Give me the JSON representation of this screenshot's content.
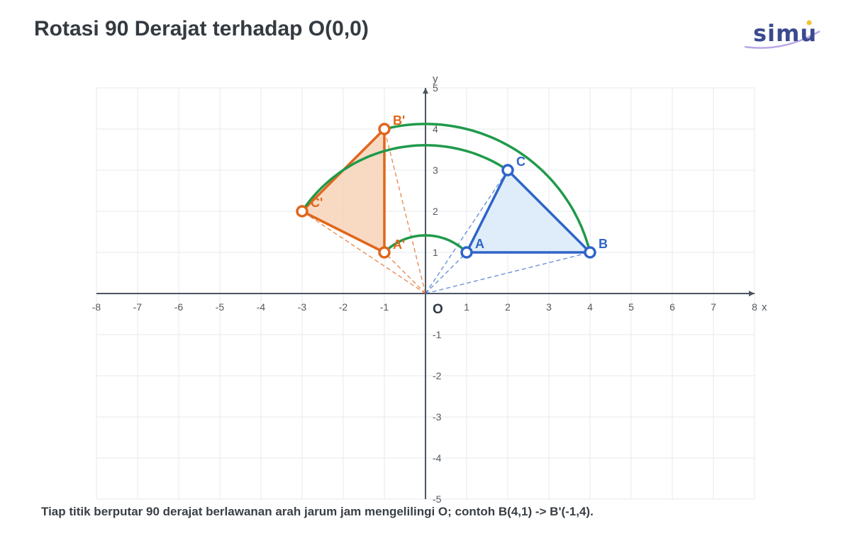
{
  "title": "Rotasi 90 Derajat terhadap O(0,0)",
  "logo": {
    "text": "simu"
  },
  "caption": "Tiap titik berputar 90 derajat berlawanan arah jarum jam mengelilingi O; contoh B(4,1) -> B'(-1,4).",
  "colors": {
    "original": "#2e64c9",
    "original_fill": "#dceaf8",
    "image": "#e0661c",
    "image_fill": "#f7d3b8",
    "arc": "#1f9a4a",
    "axis": "#4a5560"
  },
  "chart_data": {
    "type": "scatter",
    "xlim": [
      -8,
      8
    ],
    "ylim": [
      -5,
      5
    ],
    "grid": true,
    "xlabel": "x",
    "ylabel": "y",
    "origin_label": "O",
    "x_ticks": [
      -8,
      -7,
      -6,
      -5,
      -4,
      -3,
      -2,
      -1,
      1,
      2,
      3,
      4,
      5,
      6,
      7,
      8
    ],
    "y_ticks": [
      -5,
      -4,
      -3,
      -2,
      -1,
      1,
      2,
      3,
      4,
      5
    ],
    "original_points": [
      {
        "label": "A",
        "x": 1,
        "y": 1
      },
      {
        "label": "B",
        "x": 4,
        "y": 1
      },
      {
        "label": "C",
        "x": 2,
        "y": 3
      }
    ],
    "rotated_points": [
      {
        "label": "A'",
        "x": -1,
        "y": 1
      },
      {
        "label": "B'",
        "x": -1,
        "y": 4
      },
      {
        "label": "C'",
        "x": -3,
        "y": 2
      }
    ],
    "rotation_degrees": 90,
    "direction": "counterclockwise",
    "center": [
      0,
      0
    ]
  }
}
